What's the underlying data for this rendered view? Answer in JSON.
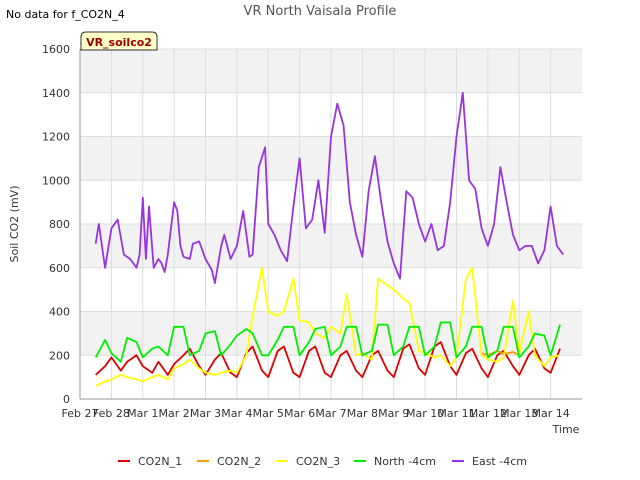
{
  "chart_data": {
    "type": "line",
    "title": "VR North Vaisala Profile",
    "note": "No data for f_CO2N_4",
    "site_label": "VR_soilco2",
    "xlabel": "Time",
    "ylabel": "Soil CO2 (mV)",
    "ylim": [
      0,
      1600
    ],
    "y_ticks": [
      0,
      200,
      400,
      600,
      800,
      1000,
      1200,
      1400,
      1600
    ],
    "x_range_days": [
      0,
      16
    ],
    "x_ticks": [
      "Feb 27",
      "Feb 28",
      "Mar 1",
      "Mar 2",
      "Mar 3",
      "Mar 4",
      "Mar 5",
      "Mar 6",
      "Mar 7",
      "Mar 8",
      "Mar 9",
      "Mar 10",
      "Mar 11",
      "Mar 12",
      "Mar 13",
      "Mar 14"
    ],
    "grid": true,
    "legend_position": "bottom",
    "series": [
      {
        "name": "CO2N_1",
        "color": "#dd0000",
        "x": [
          0.5,
          0.8,
          1.0,
          1.3,
          1.5,
          1.8,
          2.0,
          2.3,
          2.5,
          2.8,
          3.0,
          3.3,
          3.5,
          3.8,
          4.0,
          4.3,
          4.5,
          4.8,
          5.0,
          5.3,
          5.5,
          5.8,
          6.0,
          6.3,
          6.5,
          6.8,
          7.0,
          7.3,
          7.5,
          7.8,
          8.0,
          8.3,
          8.5,
          8.8,
          9.0,
          9.3,
          9.5,
          9.8,
          10.0,
          10.3,
          10.5,
          10.8,
          11.0,
          11.3,
          11.5,
          11.8,
          12.0,
          12.3,
          12.5,
          12.8,
          13.0,
          13.3,
          13.5,
          13.8,
          14.0,
          14.3,
          14.5,
          14.8,
          15.0,
          15.3
        ],
        "values": [
          110,
          150,
          190,
          130,
          170,
          200,
          150,
          120,
          170,
          110,
          160,
          200,
          230,
          150,
          110,
          180,
          210,
          120,
          100,
          210,
          240,
          130,
          100,
          220,
          240,
          120,
          100,
          220,
          240,
          120,
          100,
          200,
          220,
          130,
          100,
          200,
          220,
          130,
          100,
          230,
          250,
          140,
          110,
          240,
          260,
          150,
          110,
          210,
          230,
          140,
          100,
          200,
          220,
          150,
          110,
          200,
          230,
          140,
          120,
          230
        ]
      },
      {
        "name": "CO2N_2",
        "color": "#ff9900",
        "x": [
          12.8,
          13.0,
          13.3,
          13.5,
          13.8,
          14.0
        ],
        "values": [
          210,
          200,
          220,
          205,
          215,
          200
        ]
      },
      {
        "name": "CO2N_3",
        "color": "#ffff00",
        "x": [
          0.5,
          0.8,
          1.0,
          1.3,
          1.5,
          1.8,
          2.0,
          2.3,
          2.5,
          2.8,
          3.0,
          3.3,
          3.5,
          3.8,
          4.0,
          4.3,
          4.5,
          4.8,
          5.0,
          5.3,
          5.5,
          5.8,
          6.0,
          6.3,
          6.5,
          6.8,
          7.0,
          7.3,
          7.5,
          7.8,
          8.0,
          8.3,
          8.5,
          8.8,
          9.0,
          9.3,
          9.5,
          9.8,
          10.0,
          10.3,
          10.5,
          10.8,
          11.0,
          11.3,
          11.5,
          11.8,
          12.0,
          12.3,
          12.5,
          12.8,
          13.0,
          13.3,
          13.5,
          13.8,
          14.0,
          14.3,
          14.5,
          14.8,
          15.0,
          15.3
        ],
        "values": [
          60,
          80,
          90,
          110,
          100,
          90,
          80,
          100,
          110,
          90,
          140,
          160,
          180,
          140,
          120,
          110,
          120,
          130,
          120,
          200,
          380,
          600,
          400,
          380,
          400,
          550,
          360,
          350,
          300,
          280,
          330,
          300,
          480,
          200,
          210,
          180,
          550,
          520,
          500,
          460,
          440,
          220,
          210,
          190,
          200,
          150,
          190,
          550,
          600,
          200,
          180,
          170,
          190,
          450,
          210,
          400,
          200,
          150,
          190,
          200
        ]
      },
      {
        "name": "North -4cm",
        "color": "#00ee00",
        "x": [
          0.5,
          0.8,
          1.0,
          1.3,
          1.5,
          1.8,
          2.0,
          2.3,
          2.5,
          2.8,
          3.0,
          3.3,
          3.5,
          3.8,
          4.0,
          4.3,
          4.5,
          4.8,
          5.0,
          5.3,
          5.5,
          5.8,
          6.0,
          6.3,
          6.5,
          6.8,
          7.0,
          7.3,
          7.5,
          7.8,
          8.0,
          8.3,
          8.5,
          8.8,
          9.0,
          9.3,
          9.5,
          9.8,
          10.0,
          10.3,
          10.5,
          10.8,
          11.0,
          11.3,
          11.5,
          11.8,
          12.0,
          12.3,
          12.5,
          12.8,
          13.0,
          13.3,
          13.5,
          13.8,
          14.0,
          14.3,
          14.5,
          14.8,
          15.0,
          15.3
        ],
        "values": [
          190,
          270,
          210,
          170,
          280,
          260,
          190,
          230,
          240,
          200,
          330,
          330,
          200,
          220,
          300,
          310,
          200,
          250,
          290,
          320,
          300,
          200,
          200,
          270,
          330,
          330,
          200,
          260,
          320,
          330,
          200,
          240,
          330,
          330,
          200,
          220,
          340,
          340,
          200,
          240,
          330,
          330,
          200,
          240,
          350,
          350,
          190,
          240,
          330,
          330,
          190,
          220,
          330,
          330,
          190,
          240,
          300,
          290,
          200,
          340
        ]
      },
      {
        "name": "East -4cm",
        "color": "#9933dd",
        "x": [
          0.5,
          0.6,
          0.8,
          1.0,
          1.2,
          1.4,
          1.6,
          1.8,
          1.9,
          2.0,
          2.1,
          2.2,
          2.35,
          2.5,
          2.6,
          2.7,
          2.8,
          3.0,
          3.1,
          3.2,
          3.3,
          3.5,
          3.6,
          3.8,
          4.0,
          4.2,
          4.3,
          4.5,
          4.6,
          4.8,
          5.0,
          5.2,
          5.4,
          5.5,
          5.7,
          5.9,
          6.0,
          6.2,
          6.4,
          6.6,
          6.8,
          7.0,
          7.2,
          7.4,
          7.6,
          7.8,
          8.0,
          8.2,
          8.4,
          8.6,
          8.8,
          9.0,
          9.2,
          9.4,
          9.6,
          9.8,
          10.0,
          10.2,
          10.4,
          10.6,
          10.8,
          11.0,
          11.2,
          11.4,
          11.6,
          11.8,
          12.0,
          12.2,
          12.4,
          12.6,
          12.8,
          13.0,
          13.2,
          13.4,
          13.6,
          13.8,
          14.0,
          14.2,
          14.4,
          14.6,
          14.8,
          15.0,
          15.2,
          15.4
        ],
        "values": [
          710,
          800,
          600,
          780,
          820,
          660,
          640,
          600,
          660,
          920,
          640,
          880,
          600,
          640,
          620,
          580,
          660,
          900,
          860,
          700,
          650,
          640,
          710,
          720,
          640,
          590,
          530,
          700,
          750,
          640,
          700,
          860,
          650,
          660,
          1060,
          1150,
          800,
          750,
          680,
          630,
          880,
          1100,
          780,
          820,
          1000,
          760,
          1200,
          1350,
          1250,
          900,
          750,
          650,
          950,
          1110,
          900,
          720,
          620,
          550,
          950,
          920,
          800,
          720,
          800,
          680,
          700,
          900,
          1200,
          1400,
          1000,
          960,
          780,
          700,
          800,
          1060,
          900,
          750,
          680,
          700,
          700,
          620,
          680,
          880,
          700,
          660
        ]
      }
    ]
  }
}
